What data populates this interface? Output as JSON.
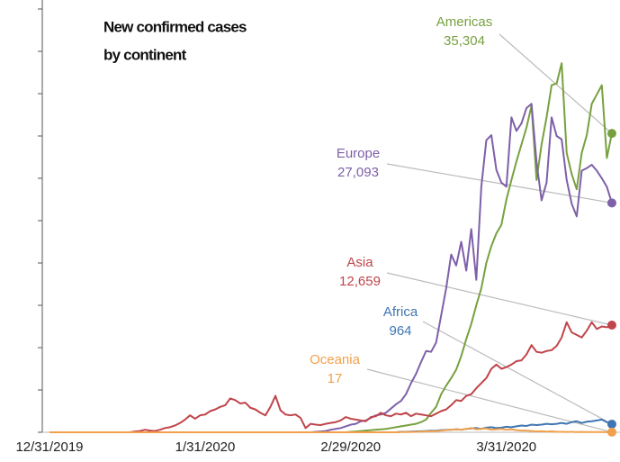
{
  "chart_data": {
    "type": "line",
    "title": [
      "New confirmed cases",
      "by continent"
    ],
    "categories": [
      "12/31/2019",
      null,
      null,
      null,
      null,
      null,
      null,
      null,
      null,
      null,
      null,
      null,
      null,
      null,
      null,
      null,
      null,
      null,
      null,
      null,
      null,
      null,
      null,
      null,
      null,
      null,
      null,
      null,
      null,
      null,
      null,
      "1/31/2020",
      null,
      null,
      null,
      null,
      null,
      null,
      null,
      null,
      null,
      null,
      null,
      null,
      null,
      null,
      null,
      null,
      null,
      null,
      null,
      null,
      null,
      null,
      null,
      null,
      null,
      null,
      null,
      null,
      "2/29/2020",
      null,
      null,
      null,
      null,
      null,
      null,
      null,
      null,
      null,
      null,
      null,
      null,
      null,
      null,
      null,
      null,
      null,
      null,
      null,
      null,
      null,
      null,
      null,
      null,
      null,
      null,
      null,
      null,
      null,
      null,
      "3/31/2020",
      null,
      null,
      null,
      null,
      null,
      null,
      null,
      null,
      null,
      null,
      null,
      null,
      null,
      null,
      null,
      null,
      null,
      null,
      null,
      null,
      null
    ],
    "ylim": [
      0,
      50000
    ],
    "yticks": [
      0,
      5000,
      10000,
      15000,
      20000,
      25000,
      30000,
      35000,
      40000,
      45000,
      50000
    ],
    "series": [
      {
        "name": "Americas",
        "color": "#78a040",
        "value_label": "35,304",
        "values": [
          0,
          0,
          0,
          0,
          0,
          0,
          0,
          0,
          0,
          0,
          0,
          0,
          0,
          0,
          0,
          0,
          0,
          0,
          0,
          0,
          0,
          0,
          0,
          0,
          0,
          0,
          0,
          0,
          0,
          0,
          0,
          0,
          0,
          0,
          0,
          0,
          0,
          0,
          0,
          0,
          0,
          0,
          0,
          0,
          0,
          0,
          0,
          0,
          0,
          0,
          0,
          0,
          0,
          0,
          0,
          0,
          0,
          0,
          0,
          0,
          50,
          100,
          150,
          200,
          250,
          300,
          350,
          400,
          500,
          600,
          700,
          800,
          900,
          1000,
          1200,
          1500,
          2300,
          3000,
          4500,
          5500,
          6400,
          7400,
          9000,
          11000,
          12800,
          15000,
          17000,
          20000,
          22000,
          23500,
          24500,
          27500,
          29800,
          32000,
          34000,
          36000,
          38600,
          29800,
          34000,
          37200,
          41000,
          41200,
          43600,
          33000,
          30500,
          28700,
          33000,
          35100,
          38800,
          39900,
          41000,
          32400,
          35304
        ]
      },
      {
        "name": "Europe",
        "color": "#7e60a8",
        "value_label": "27,093",
        "values": [
          0,
          0,
          0,
          0,
          0,
          0,
          0,
          0,
          0,
          0,
          0,
          0,
          0,
          0,
          0,
          0,
          0,
          0,
          0,
          0,
          0,
          0,
          0,
          0,
          0,
          0,
          0,
          0,
          0,
          0,
          0,
          0,
          0,
          0,
          0,
          0,
          0,
          0,
          0,
          0,
          0,
          0,
          0,
          0,
          0,
          0,
          0,
          0,
          0,
          0,
          0,
          0,
          0,
          50,
          100,
          150,
          300,
          400,
          500,
          700,
          900,
          1000,
          1300,
          1400,
          1700,
          2000,
          2100,
          2300,
          2800,
          3300,
          3700,
          4500,
          5800,
          6900,
          8300,
          9600,
          9500,
          10600,
          13800,
          17000,
          21000,
          19700,
          22500,
          19100,
          24000,
          18000,
          29000,
          34500,
          35100,
          31000,
          29500,
          29000,
          37200,
          35600,
          36500,
          38300,
          38800,
          31900,
          27400,
          29500,
          37200,
          35000,
          34600,
          29800,
          27000,
          25500,
          30900,
          31200,
          31600,
          30900,
          30000,
          29000,
          27093
        ]
      },
      {
        "name": "Asia",
        "color": "#c0454b",
        "value_label": "12,659",
        "values": [
          0,
          0,
          0,
          0,
          0,
          0,
          0,
          0,
          0,
          0,
          0,
          0,
          0,
          0,
          0,
          0,
          0,
          100,
          150,
          300,
          200,
          150,
          300,
          500,
          600,
          800,
          1100,
          1500,
          2000,
          1600,
          2000,
          2100,
          2500,
          2700,
          3000,
          3200,
          4000,
          3800,
          3400,
          3500,
          2900,
          2700,
          2300,
          2000,
          3000,
          4300,
          2600,
          2100,
          2000,
          2100,
          1700,
          500,
          1000,
          900,
          850,
          1000,
          1100,
          1200,
          1400,
          1800,
          1600,
          1500,
          1400,
          1300,
          1800,
          1900,
          2300,
          2000,
          1900,
          2200,
          2100,
          2300,
          1900,
          2200,
          2100,
          2000,
          1900,
          2200,
          2500,
          2700,
          3200,
          3800,
          3700,
          4300,
          4500,
          5200,
          5800,
          6400,
          7500,
          8000,
          7500,
          7700,
          8000,
          8400,
          8500,
          9200,
          10300,
          9500,
          9400,
          9600,
          9700,
          10200,
          11200,
          13000,
          11800,
          11500,
          11200,
          12000,
          13000,
          12200,
          12500,
          12400,
          12659
        ]
      },
      {
        "name": "Africa",
        "color": "#3f75b2",
        "value_label": "964",
        "values": [
          0,
          0,
          0,
          0,
          0,
          0,
          0,
          0,
          0,
          0,
          0,
          0,
          0,
          0,
          0,
          0,
          0,
          0,
          0,
          0,
          0,
          0,
          0,
          0,
          0,
          0,
          0,
          0,
          0,
          0,
          0,
          0,
          0,
          0,
          0,
          0,
          0,
          0,
          0,
          0,
          0,
          0,
          0,
          0,
          0,
          0,
          0,
          0,
          0,
          0,
          0,
          0,
          0,
          0,
          0,
          0,
          0,
          0,
          0,
          0,
          0,
          0,
          0,
          0,
          0,
          0,
          0,
          0,
          0,
          0,
          50,
          60,
          80,
          100,
          120,
          150,
          180,
          200,
          250,
          280,
          300,
          350,
          300,
          400,
          450,
          500,
          400,
          550,
          600,
          500,
          550,
          650,
          600,
          700,
          800,
          750,
          900,
          850,
          900,
          1000,
          950,
          1000,
          1100,
          1000,
          1200,
          1300,
          1100,
          1250,
          1300,
          1400,
          1500,
          1200,
          964
        ]
      },
      {
        "name": "Oceania",
        "color": "#f1a04c",
        "value_label": "17",
        "values": [
          0,
          0,
          0,
          0,
          0,
          0,
          0,
          0,
          0,
          0,
          0,
          0,
          0,
          0,
          0,
          0,
          0,
          0,
          0,
          0,
          0,
          0,
          0,
          0,
          0,
          0,
          0,
          0,
          0,
          0,
          0,
          0,
          0,
          0,
          0,
          0,
          0,
          0,
          0,
          0,
          0,
          0,
          0,
          0,
          0,
          0,
          0,
          0,
          0,
          0,
          0,
          0,
          0,
          0,
          0,
          0,
          0,
          0,
          0,
          0,
          0,
          0,
          0,
          0,
          0,
          0,
          0,
          0,
          0,
          0,
          20,
          30,
          40,
          60,
          80,
          100,
          120,
          150,
          200,
          250,
          300,
          350,
          300,
          400,
          500,
          350,
          400,
          450,
          300,
          350,
          400,
          300,
          350,
          250,
          200,
          200,
          150,
          100,
          120,
          80,
          100,
          60,
          50,
          40,
          50,
          30,
          40,
          20,
          30,
          20,
          25,
          15,
          17
        ]
      }
    ]
  }
}
